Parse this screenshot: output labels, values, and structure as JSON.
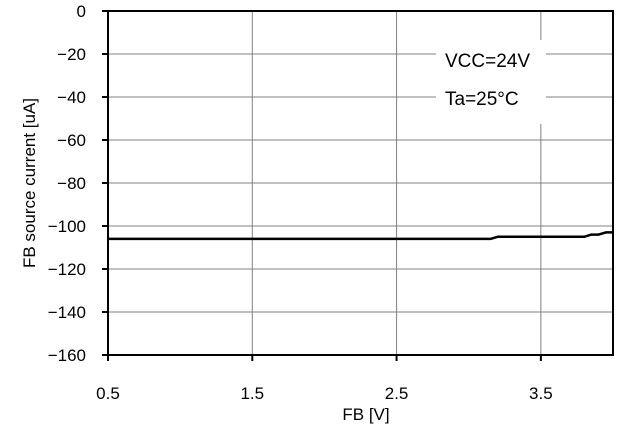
{
  "chart_data": {
    "type": "line",
    "title": "",
    "xlabel": "FB [V]",
    "ylabel": "FB source current [uA]",
    "xlim": [
      0.5,
      4.0
    ],
    "ylim": [
      -160,
      0
    ],
    "x_ticks": [
      0.5,
      1.5,
      2.5,
      3.5
    ],
    "x_tick_labels": [
      "0.5",
      "1.5",
      "2.5",
      "3.5"
    ],
    "x_grid": [
      1.5,
      2.5,
      3.5
    ],
    "y_ticks": [
      0,
      -20,
      -40,
      -60,
      -80,
      -100,
      -120,
      -140,
      -160
    ],
    "y_tick_labels": [
      "0",
      "−20",
      "−40",
      "−60",
      "−80",
      "−100",
      "−120",
      "−140",
      "−160"
    ],
    "grid": true,
    "legend": "none",
    "annotations": [
      "VCC=24V",
      "Ta=25°C"
    ],
    "series": [
      {
        "color": "#000000",
        "x": [
          0.5,
          1.0,
          1.5,
          2.0,
          2.5,
          3.0,
          3.1,
          3.15,
          3.2,
          3.5,
          3.8,
          3.85,
          3.9,
          3.95,
          4.0
        ],
        "y": [
          -106,
          -106,
          -106,
          -106,
          -106,
          -106,
          -106,
          -106,
          -105,
          -105,
          -105,
          -104,
          -104,
          -103,
          -103
        ]
      }
    ]
  }
}
